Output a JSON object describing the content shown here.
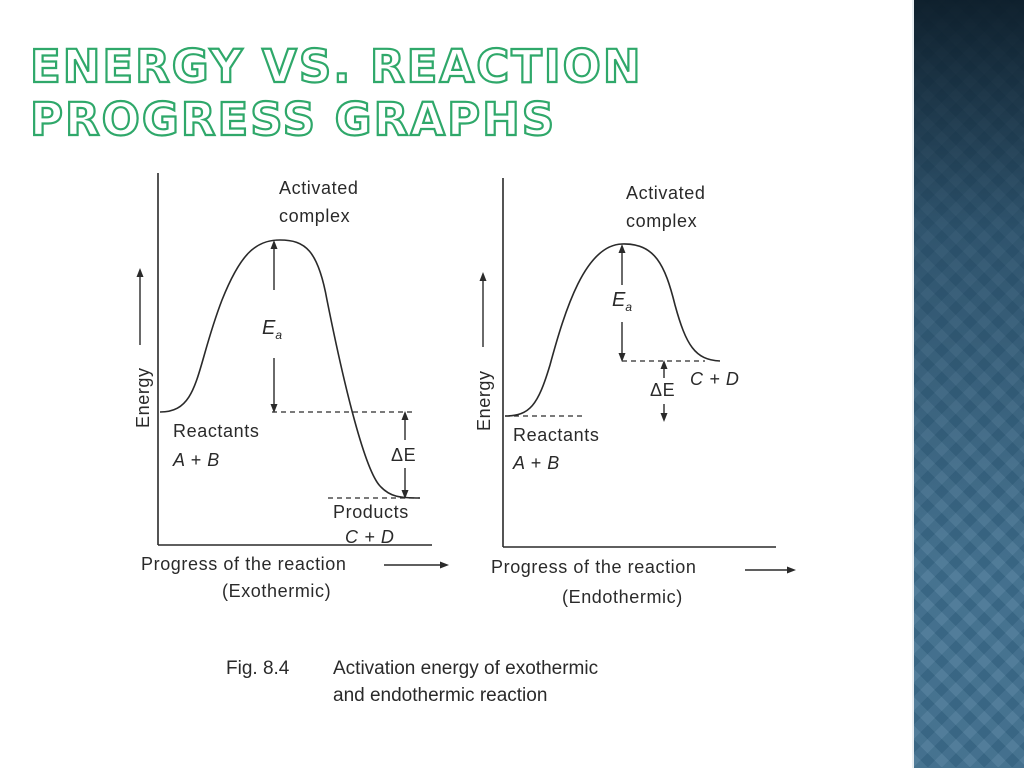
{
  "slide": {
    "title": "ENERGY VS. REACTION PROGRESS GRAPHS",
    "colors": {
      "title_outline": "#2fa86a",
      "sidebar": "#3d6e8e",
      "ink": "#2a2a2a"
    }
  },
  "figure": {
    "panels": [
      {
        "y_axis_label": "Energy",
        "activated_line1": "Activated",
        "activated_line2": "complex",
        "ea_label": "E",
        "ea_subscript": "a",
        "delta_e_label": "ΔE",
        "reactants_label": "Reactants",
        "reactants_formula": "A + B",
        "products_label": "Products",
        "products_formula": "C + D",
        "x_axis_label": "Progress of the reaction",
        "reaction_type": "(Exothermic)"
      },
      {
        "y_axis_label": "Energy",
        "activated_line1": "Activated",
        "activated_line2": "complex",
        "ea_label": "E",
        "ea_subscript": "a",
        "delta_e_label": "ΔE",
        "reactants_label": "Reactants",
        "reactants_formula": "A + B",
        "products_formula": "C + D",
        "x_axis_label": "Progress of the reaction",
        "reaction_type": "(Endothermic)"
      }
    ],
    "caption_number": "Fig. 8.4",
    "caption_line1": "Activation energy of exothermic",
    "caption_line2": "and endothermic reaction"
  }
}
